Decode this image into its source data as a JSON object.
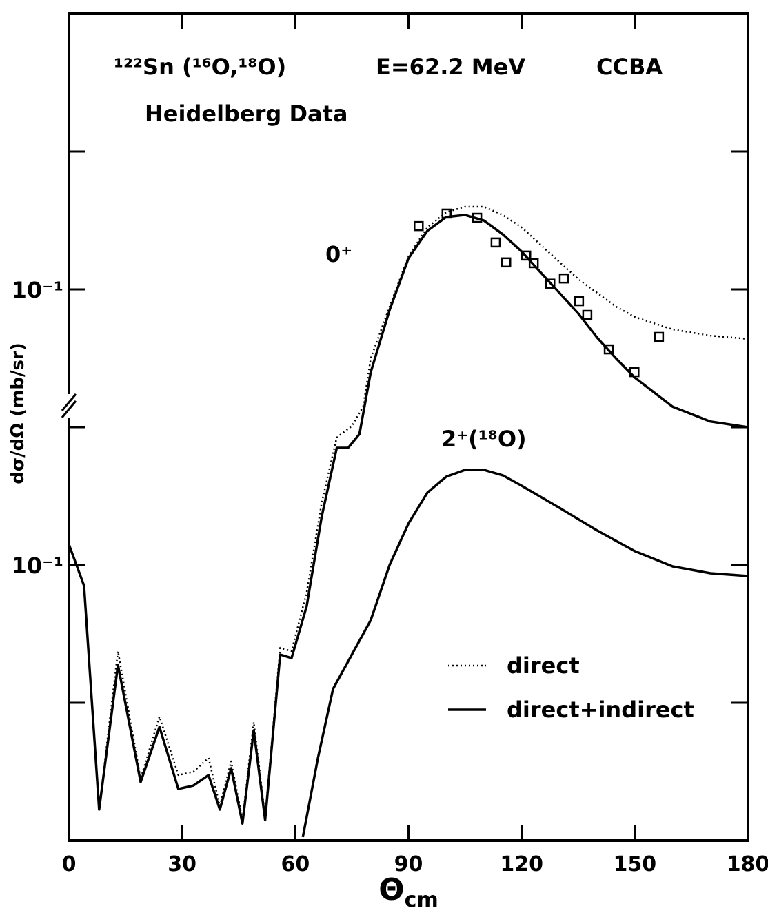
{
  "chart_data": {
    "type": "line",
    "annotations": [
      "¹²²Sn (¹⁶O,¹⁸O)",
      "E=62.2 MeV",
      "CCBA",
      "Heidelberg Data"
    ],
    "panel_labels": [
      "0⁺",
      "2⁺(¹⁸O)"
    ],
    "xlabel": "Θ",
    "xlabel_sub": "cm",
    "ylabel": "dσ/dΩ (mb/sr)",
    "xlim": [
      0,
      180
    ],
    "xticks": [
      0,
      30,
      60,
      90,
      120,
      150,
      180
    ],
    "log_y": true,
    "ylim": [
      1e-05,
      10
    ],
    "yticks": [
      {
        "value": 0.1,
        "label": "10⁻¹"
      }
    ],
    "ytick_marks": [
      1,
      0.01,
      0.001,
      0.0001
    ],
    "y2lim": [
      0.001,
      1000
    ],
    "y2ticks": [
      {
        "value": 0.1,
        "label": "10⁻¹"
      }
    ],
    "series": [
      {
        "name": "direct",
        "style": "dotted",
        "color": "#000000",
        "x": [
          0,
          4,
          8,
          13,
          19,
          24,
          29,
          33,
          37,
          40,
          43,
          46,
          49,
          52,
          56,
          59,
          63,
          67,
          71,
          75,
          78,
          80,
          85,
          90,
          95,
          100,
          105,
          110,
          115,
          120,
          125,
          130,
          135,
          140,
          145,
          150,
          160,
          170,
          180
        ],
        "values": [
          0.00141,
          0.000708,
          1.68e-05,
          0.000237,
          2.82e-05,
          7.94e-05,
          2.99e-05,
          3.16e-05,
          3.98e-05,
          1.78e-05,
          3.76e-05,
          1.41e-05,
          7.24e-05,
          1.5e-05,
          0.000251,
          0.000237,
          0.000631,
          0.00282,
          0.00841,
          0.0102,
          0.0141,
          0.0316,
          0.075,
          0.174,
          0.282,
          0.363,
          0.398,
          0.398,
          0.347,
          0.282,
          0.211,
          0.158,
          0.119,
          0.0944,
          0.075,
          0.0631,
          0.0513,
          0.0462,
          0.0437
        ]
      },
      {
        "name": "direct+indirect",
        "style": "solid",
        "color": "#000000",
        "x": [
          0,
          4,
          8,
          13,
          19,
          24,
          29,
          33,
          37,
          40,
          43,
          46,
          49,
          52,
          56,
          59,
          63,
          67,
          71,
          74,
          77,
          80,
          85,
          90,
          95,
          100,
          105,
          110,
          115,
          120,
          125,
          130,
          135,
          140,
          145,
          150,
          160,
          170,
          180
        ],
        "values": [
          0.00141,
          0.000708,
          1.68e-05,
          0.000188,
          2.66e-05,
          6.68e-05,
          2.37e-05,
          2.51e-05,
          2.99e-05,
          1.68e-05,
          3.35e-05,
          1.33e-05,
          6.31e-05,
          1.41e-05,
          0.000224,
          0.000211,
          0.000501,
          0.00224,
          0.00708,
          0.00708,
          0.00891,
          0.0251,
          0.0708,
          0.168,
          0.266,
          0.335,
          0.347,
          0.316,
          0.251,
          0.188,
          0.133,
          0.0944,
          0.0668,
          0.0447,
          0.0316,
          0.0229,
          0.0141,
          0.011,
          0.01
        ]
      },
      {
        "style": "solid",
        "color": "#000000",
        "axis": "y2",
        "x": [
          62,
          66,
          70,
          75,
          80,
          85,
          90,
          95,
          100,
          105,
          110,
          115,
          120,
          130,
          140,
          150,
          160,
          170,
          180
        ],
        "values": [
          0.00106,
          0.00398,
          0.0126,
          0.0224,
          0.0398,
          0.1,
          0.2,
          0.335,
          0.437,
          0.49,
          0.49,
          0.447,
          0.376,
          0.26,
          0.178,
          0.126,
          0.0977,
          0.0871,
          0.0832
        ]
      }
    ],
    "points": {
      "color": "#000000",
      "x": [
        92.7,
        100.1,
        108.2,
        113.1,
        115.9,
        121.2,
        123.2,
        127.6,
        131.2,
        135.2,
        137.4,
        143.1,
        149.9,
        156.4
      ],
      "values": [
        0.288,
        0.355,
        0.331,
        0.219,
        0.157,
        0.176,
        0.155,
        0.11,
        0.12,
        0.0822,
        0.0653,
        0.0367,
        0.0251,
        0.0452
      ]
    }
  }
}
